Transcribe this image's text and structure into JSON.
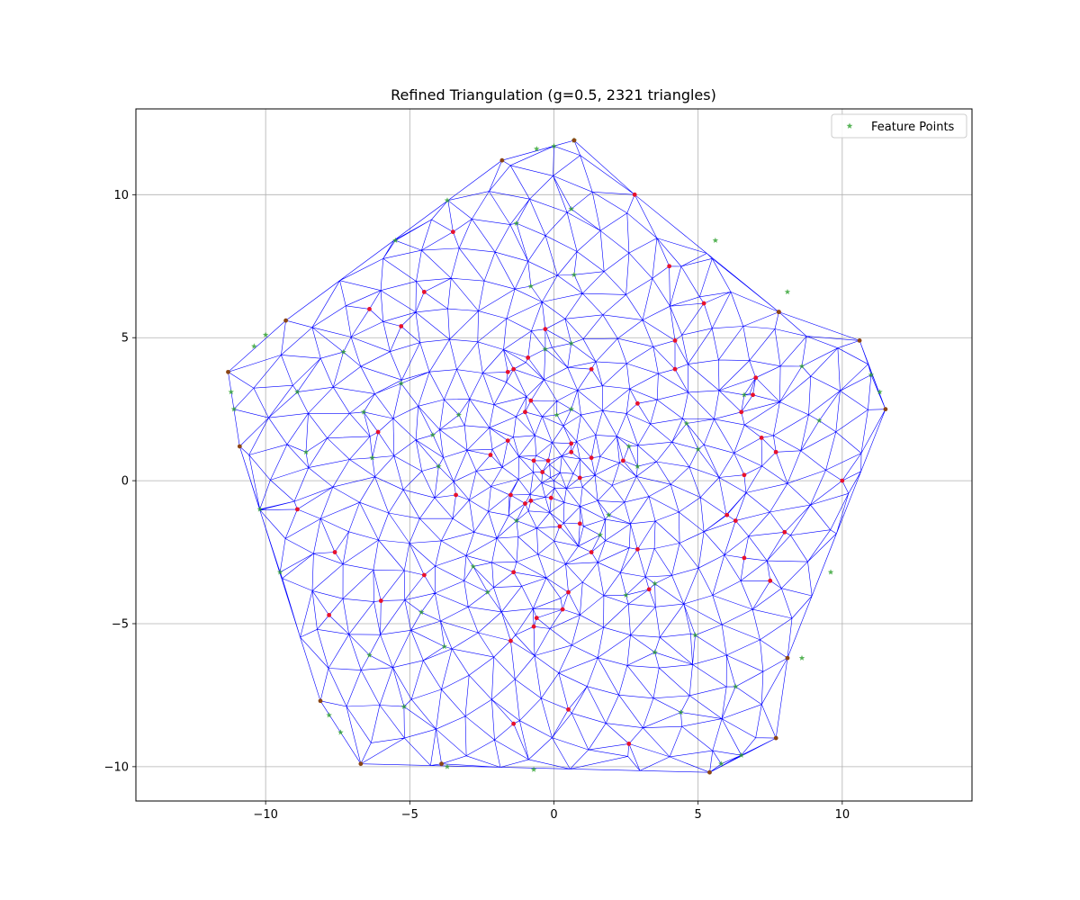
{
  "chart_data": {
    "type": "scatter",
    "title": "Refined Triangulation (g=0.5, 2321 triangles)",
    "xlabel": "",
    "ylabel": "",
    "xlim": [
      -14.5,
      14.5
    ],
    "ylim": [
      -11.2,
      13.0
    ],
    "x_ticks": [
      -10,
      -5,
      0,
      5,
      10
    ],
    "y_ticks": [
      -10,
      -5,
      0,
      5,
      10
    ],
    "x_tick_labels": [
      "−10",
      "−5",
      "0",
      "5",
      "10"
    ],
    "y_tick_labels": [
      "−10",
      "−5",
      "0",
      "5",
      "10"
    ],
    "grid": true,
    "legend_position": "top-right",
    "mesh_color": "#0000ff",
    "boundary_vertices": [
      [
        0.7,
        11.9
      ],
      [
        -1.8,
        11.2
      ],
      [
        -9.3,
        5.6
      ],
      [
        -11.3,
        3.8
      ],
      [
        -10.9,
        1.2
      ],
      [
        -8.1,
        -7.7
      ],
      [
        -6.7,
        -9.9
      ],
      [
        5.4,
        -10.2
      ],
      [
        7.7,
        -9.0
      ],
      [
        8.1,
        -6.2
      ],
      [
        11.5,
        2.5
      ],
      [
        10.6,
        4.9
      ],
      [
        7.8,
        5.9
      ],
      [
        2.8,
        10.0
      ]
    ],
    "series": [
      {
        "name": "Feature Points",
        "marker": "star",
        "color": "#2ca02c",
        "points": [
          [
            0.7,
            11.9
          ],
          [
            0.0,
            11.7
          ],
          [
            -0.6,
            11.6
          ],
          [
            -3.7,
            9.8
          ],
          [
            -5.5,
            8.4
          ],
          [
            -1.3,
            9.0
          ],
          [
            0.6,
            9.5
          ],
          [
            5.6,
            8.4
          ],
          [
            8.1,
            6.6
          ],
          [
            11.0,
            3.7
          ],
          [
            11.3,
            3.1
          ],
          [
            -10.0,
            5.1
          ],
          [
            -10.4,
            4.7
          ],
          [
            -11.2,
            3.1
          ],
          [
            -11.1,
            2.5
          ],
          [
            -7.3,
            4.5
          ],
          [
            -8.9,
            3.1
          ],
          [
            -5.3,
            3.4
          ],
          [
            -6.6,
            2.4
          ],
          [
            -8.6,
            1.0
          ],
          [
            -6.3,
            0.8
          ],
          [
            -4.0,
            0.5
          ],
          [
            -4.2,
            1.6
          ],
          [
            -3.3,
            2.3
          ],
          [
            -10.2,
            -1.0
          ],
          [
            -9.5,
            -3.2
          ],
          [
            -0.8,
            6.8
          ],
          [
            0.7,
            7.2
          ],
          [
            -0.3,
            4.6
          ],
          [
            0.6,
            4.8
          ],
          [
            8.6,
            4.0
          ],
          [
            9.2,
            2.1
          ],
          [
            4.6,
            2.0
          ],
          [
            6.6,
            3.0
          ],
          [
            5.0,
            1.1
          ],
          [
            2.6,
            1.2
          ],
          [
            2.9,
            0.5
          ],
          [
            0.6,
            2.5
          ],
          [
            0.1,
            2.3
          ],
          [
            1.9,
            -1.2
          ],
          [
            1.6,
            -1.9
          ],
          [
            -2.8,
            -3.0
          ],
          [
            -2.3,
            -3.9
          ],
          [
            -4.6,
            -4.6
          ],
          [
            -3.8,
            -5.8
          ],
          [
            -6.4,
            -6.1
          ],
          [
            -5.2,
            -7.9
          ],
          [
            -7.8,
            -8.2
          ],
          [
            -7.4,
            -8.8
          ],
          [
            -3.7,
            -10.0
          ],
          [
            -0.7,
            -10.1
          ],
          [
            5.8,
            -9.9
          ],
          [
            6.5,
            -9.6
          ],
          [
            6.3,
            -7.2
          ],
          [
            4.4,
            -8.1
          ],
          [
            4.9,
            -5.4
          ],
          [
            3.5,
            -6.0
          ],
          [
            3.5,
            -3.6
          ],
          [
            2.5,
            -4.0
          ],
          [
            9.6,
            -3.2
          ],
          [
            8.6,
            -6.2
          ],
          [
            -1.3,
            -1.4
          ]
        ]
      },
      {
        "name": "",
        "marker": "dot",
        "color": "#e8112d",
        "points": [
          [
            -3.5,
            8.7
          ],
          [
            -4.5,
            6.6
          ],
          [
            -6.4,
            6.0
          ],
          [
            -5.3,
            5.4
          ],
          [
            -6.1,
            1.7
          ],
          [
            -8.9,
            -1.0
          ],
          [
            -7.6,
            -2.5
          ],
          [
            -7.8,
            -4.7
          ],
          [
            -6.0,
            -4.2
          ],
          [
            -4.5,
            -3.3
          ],
          [
            -3.4,
            -0.5
          ],
          [
            -1.4,
            -3.2
          ],
          [
            -1.5,
            -5.6
          ],
          [
            -1.4,
            -8.5
          ],
          [
            -0.6,
            -4.8
          ],
          [
            -0.7,
            -5.1
          ],
          [
            0.5,
            -3.9
          ],
          [
            0.3,
            -4.5
          ],
          [
            0.5,
            -8.0
          ],
          [
            2.6,
            -9.2
          ],
          [
            2.9,
            -2.4
          ],
          [
            3.3,
            -3.8
          ],
          [
            1.3,
            -2.5
          ],
          [
            0.9,
            -1.5
          ],
          [
            0.2,
            -1.6
          ],
          [
            -0.1,
            -0.6
          ],
          [
            -0.4,
            0.3
          ],
          [
            -0.7,
            0.7
          ],
          [
            -0.2,
            0.7
          ],
          [
            0.6,
            1.0
          ],
          [
            0.6,
            1.3
          ],
          [
            1.3,
            0.8
          ],
          [
            2.4,
            0.7
          ],
          [
            0.9,
            0.1
          ],
          [
            2.9,
            2.7
          ],
          [
            1.3,
            3.9
          ],
          [
            -0.3,
            5.3
          ],
          [
            -0.9,
            4.3
          ],
          [
            -1.4,
            3.9
          ],
          [
            -1.6,
            3.8
          ],
          [
            -0.8,
            2.8
          ],
          [
            -1.0,
            2.4
          ],
          [
            -1.6,
            1.4
          ],
          [
            -2.2,
            0.9
          ],
          [
            -1.5,
            -0.5
          ],
          [
            -1.0,
            -0.8
          ],
          [
            -0.8,
            -0.7
          ],
          [
            4.0,
            7.5
          ],
          [
            5.2,
            6.2
          ],
          [
            4.2,
            4.9
          ],
          [
            4.2,
            3.9
          ],
          [
            7.0,
            3.6
          ],
          [
            6.9,
            3.0
          ],
          [
            6.5,
            2.4
          ],
          [
            7.2,
            1.5
          ],
          [
            7.7,
            1.0
          ],
          [
            6.6,
            0.2
          ],
          [
            6.0,
            -1.2
          ],
          [
            6.3,
            -1.4
          ],
          [
            8.0,
            -1.8
          ],
          [
            6.6,
            -2.7
          ],
          [
            7.5,
            -3.5
          ],
          [
            10.0,
            0.0
          ],
          [
            2.8,
            10.0
          ],
          [
            7.8,
            5.9
          ]
        ]
      },
      {
        "name": "",
        "marker": "dot",
        "color": "#8b4513",
        "points": [
          [
            0.7,
            11.9
          ],
          [
            -1.8,
            11.2
          ],
          [
            -9.3,
            5.6
          ],
          [
            -11.3,
            3.8
          ],
          [
            -10.9,
            1.2
          ],
          [
            -8.1,
            -7.7
          ],
          [
            -6.7,
            -9.9
          ],
          [
            -3.9,
            -9.9
          ],
          [
            5.4,
            -10.2
          ],
          [
            7.7,
            -9.0
          ],
          [
            8.1,
            -6.2
          ],
          [
            11.5,
            2.5
          ],
          [
            10.6,
            4.9
          ],
          [
            7.8,
            5.9
          ]
        ]
      }
    ]
  }
}
